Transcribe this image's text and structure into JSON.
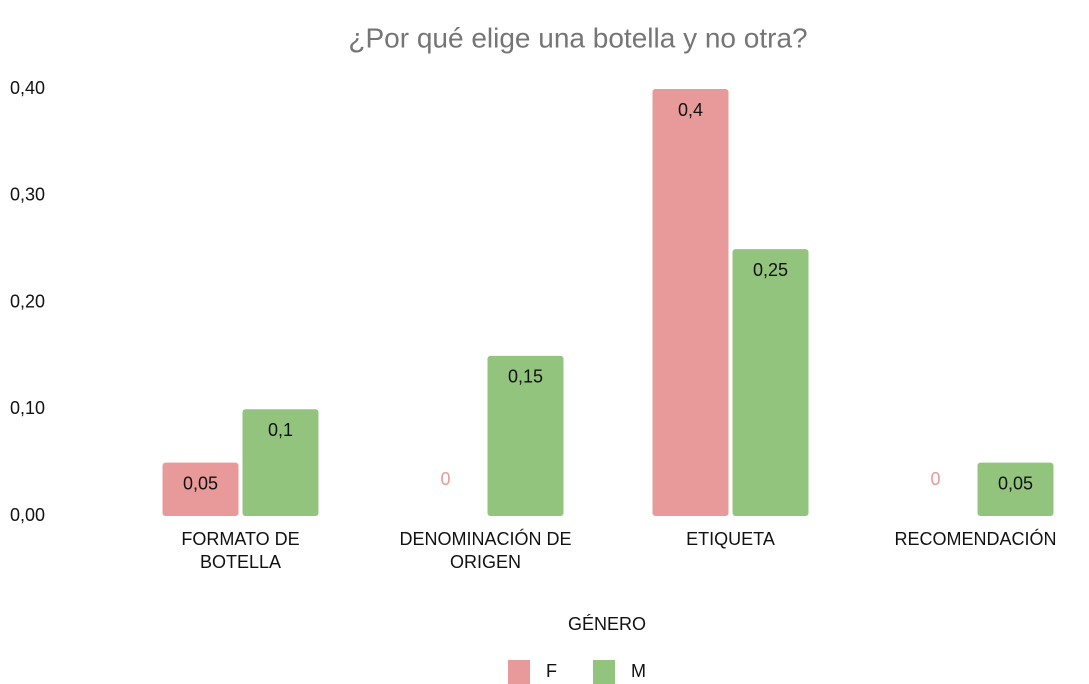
{
  "chart_data": {
    "type": "bar",
    "title": "¿Por qué elige una botella y no otra?",
    "categories": [
      "FORMATO DE\nBOTELLA",
      "DENOMINACIÓN DE\nORIGEN",
      "ETIQUETA",
      "RECOMENDACIÓN"
    ],
    "series": [
      {
        "name": "F",
        "color": "#e8999a",
        "values": [
          0.05,
          0,
          0.4,
          0
        ],
        "value_labels": [
          "0,05",
          "0",
          "0,4",
          "0"
        ]
      },
      {
        "name": "M",
        "color": "#93c47d",
        "values": [
          0.1,
          0.15,
          0.25,
          0.05
        ],
        "value_labels": [
          "0,1",
          "0,15",
          "0,25",
          "0,05"
        ]
      }
    ],
    "ylim": [
      0,
      0.4
    ],
    "yticks": [
      {
        "value": 0,
        "label": "0,00"
      },
      {
        "value": 0.1,
        "label": "0,10"
      },
      {
        "value": 0.2,
        "label": "0,20"
      },
      {
        "value": 0.3,
        "label": "0,30"
      },
      {
        "value": 0.4,
        "label": "0,40"
      }
    ],
    "grid": false,
    "legend_title": "GÉNERO",
    "legend": "bottom"
  }
}
